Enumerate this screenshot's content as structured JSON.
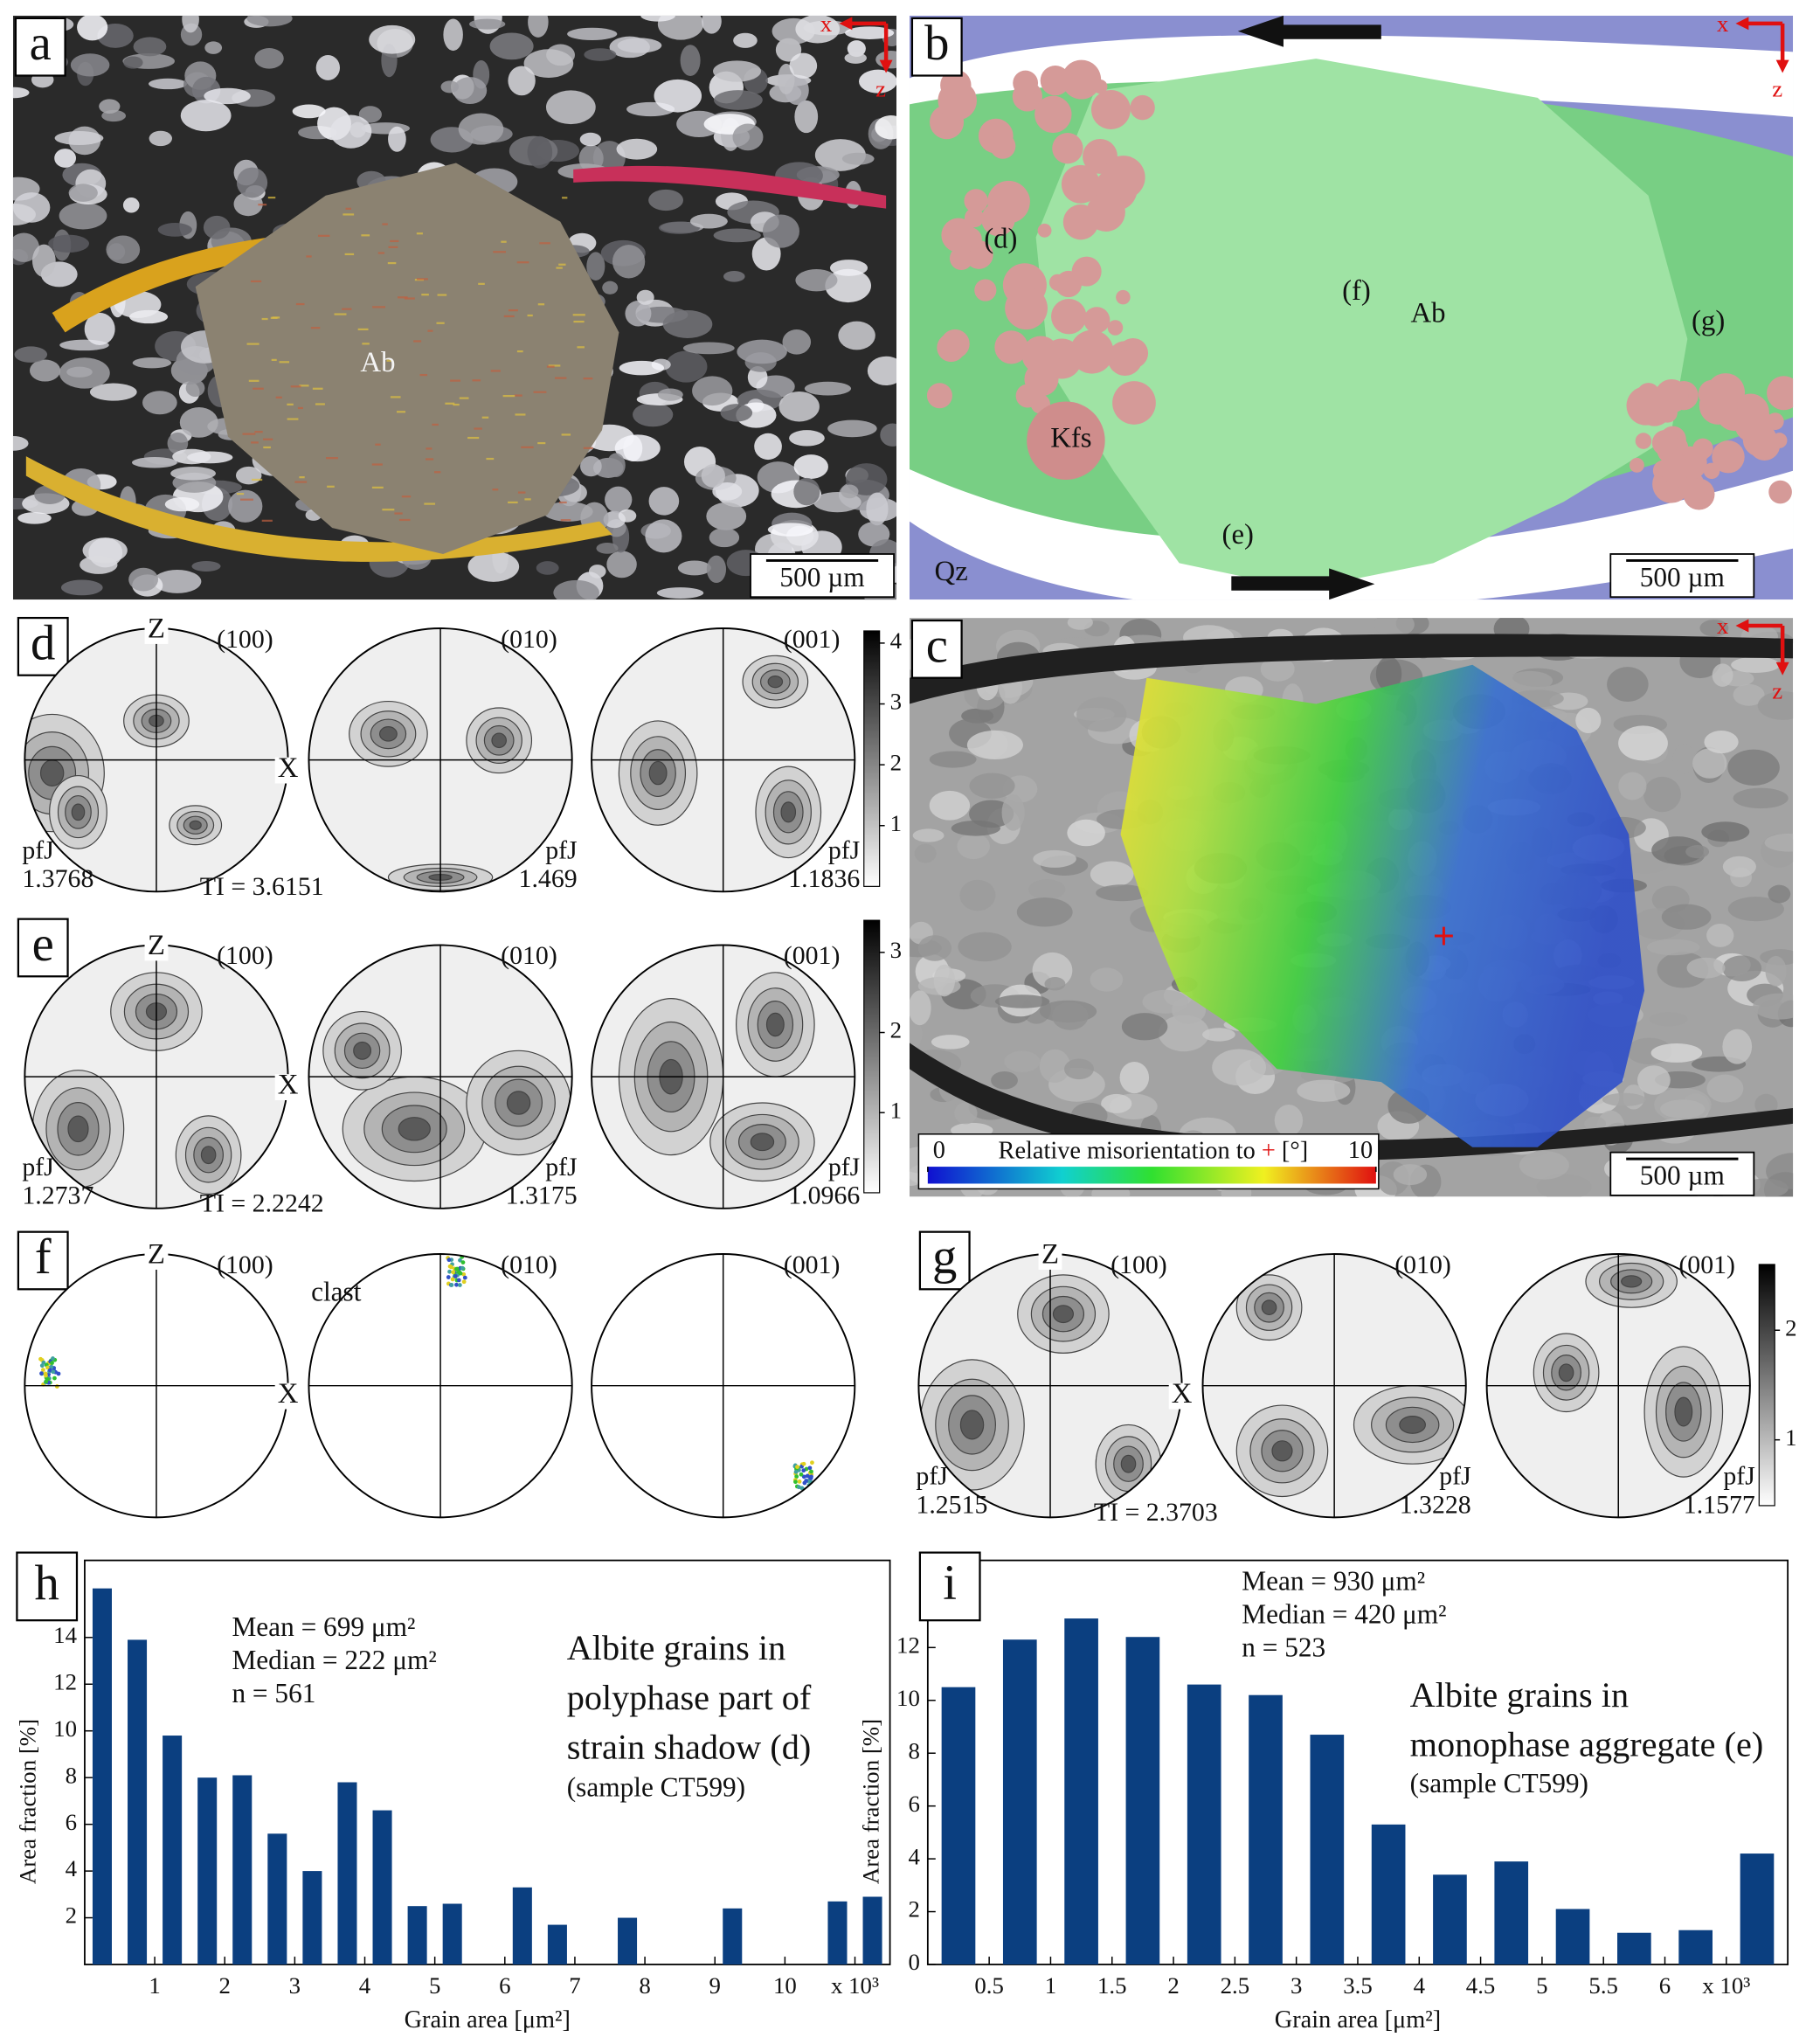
{
  "panels": {
    "a": {
      "label": "a",
      "text": "Ab",
      "scale_bar": "500 µm",
      "axes": [
        "x",
        "z"
      ]
    },
    "b": {
      "label": "b",
      "texts": [
        "(d)",
        "(f)",
        "Ab",
        "(g)",
        "Kfs",
        "(e)",
        "Qz"
      ],
      "scale_bar": "500 µm",
      "axes": [
        "x",
        "z"
      ]
    },
    "c": {
      "label": "c",
      "colorbar_title": [
        "Relative misorientation to",
        "+",
        "[°]"
      ],
      "colorbar_lim": [
        0,
        10
      ],
      "colorbar_ticks": [
        0,
        10
      ],
      "scale_bar": "500 µm",
      "axes": [
        "x",
        "z"
      ]
    },
    "d": {
      "label": "d",
      "z": "Z",
      "x": "X",
      "planes": [
        "(100)",
        "(010)",
        "(001)"
      ],
      "pfj": [
        {
          "label": "pfJ",
          "value": 1.3768
        },
        {
          "label": "pfJ",
          "value": 1.469
        },
        {
          "label": "pfJ",
          "value": 1.1836
        }
      ],
      "ti": "TI = 3.6151",
      "colorbar_lim": [
        0,
        4.2
      ],
      "colorbar_ticks": [
        1,
        2,
        3,
        4
      ]
    },
    "e": {
      "label": "e",
      "z": "Z",
      "x": "X",
      "planes": [
        "(100)",
        "(010)",
        "(001)"
      ],
      "pfj": [
        {
          "label": "pfJ",
          "value": 1.2737
        },
        {
          "label": "pfJ",
          "value": 1.3175
        },
        {
          "label": "pfJ",
          "value": 1.0966
        }
      ],
      "ti": "TI = 2.2242",
      "colorbar_lim": [
        0,
        3.4
      ],
      "colorbar_ticks": [
        1,
        2,
        3
      ]
    },
    "f": {
      "label": "f",
      "z": "Z",
      "x": "X",
      "planes": [
        "(100)",
        "(010)",
        "(001)"
      ],
      "note": "clast"
    },
    "g": {
      "label": "g",
      "z": "Z",
      "x": "X",
      "planes": [
        "(100)",
        "(010)",
        "(001)"
      ],
      "pfj": [
        {
          "label": "pfJ",
          "value": 1.2515
        },
        {
          "label": "pfJ",
          "value": 1.3228
        },
        {
          "label": "pfJ",
          "value": 1.1577
        }
      ],
      "ti": "TI = 2.3703",
      "colorbar_lim": [
        0.4,
        2.6
      ],
      "colorbar_ticks": [
        1,
        2
      ]
    }
  },
  "chart_data": [
    {
      "type": "histogram",
      "panel_label": "h",
      "xlabel": "Grain area [μm²]",
      "ylabel": "Area fraction [%]",
      "bins": [
        0,
        0.5,
        1,
        1.5,
        2,
        2.5,
        3,
        3.5,
        4,
        4.5,
        5,
        5.5,
        6,
        6.5,
        7,
        7.5,
        8,
        8.5,
        9,
        9.5,
        10,
        10.5,
        11,
        11.5
      ],
      "values": [
        16.1,
        13.9,
        9.8,
        8.0,
        8.1,
        5.6,
        4.0,
        7.8,
        6.6,
        2.5,
        2.6,
        0,
        3.3,
        1.7,
        0,
        2.0,
        0,
        0,
        2.4,
        0,
        0,
        2.7,
        2.9
      ],
      "color": "#0b3f80",
      "xlim": [
        0,
        11.5
      ],
      "xticks": [
        1,
        2,
        3,
        4,
        5,
        6,
        7,
        8,
        9,
        10,
        {
          "value": 11,
          "label": "x 10³"
        }
      ],
      "ylim": [
        0,
        17.3
      ],
      "yticks": [
        2,
        4,
        6,
        8,
        10,
        12,
        14
      ],
      "stats": [
        "Mean = 699 μm²",
        "Median = 222 μm²",
        "n = 561"
      ],
      "note": [
        "Albite grains in",
        "polyphase part of",
        "strain shadow (d)"
      ],
      "sample": "(sample CT599)"
    },
    {
      "type": "histogram",
      "panel_label": "i",
      "xlabel": "Grain area [μm²]",
      "ylabel": "Area fraction [%]",
      "bins": [
        0,
        0.5,
        1,
        1.5,
        2,
        2.5,
        3,
        3.5,
        4,
        4.5,
        5,
        5.5,
        6,
        6.5,
        7
      ],
      "values": [
        10.5,
        12.3,
        13.1,
        12.4,
        10.6,
        10.2,
        8.7,
        5.3,
        3.4,
        3.9,
        2.1,
        1.2,
        1.3,
        4.2
      ],
      "color": "#0b3f80",
      "xlim": [
        0,
        7
      ],
      "xticks": [
        0.5,
        1,
        1.5,
        2,
        2.5,
        3,
        3.5,
        4,
        4.5,
        5,
        5.5,
        6,
        {
          "value": 6.5,
          "label": "x 10³"
        }
      ],
      "ylim": [
        0,
        15.3
      ],
      "yticks": [
        0,
        2,
        4,
        6,
        8,
        10,
        12
      ],
      "stats": [
        "Mean = 930 μm²",
        "Median = 420 μm²",
        "n = 523"
      ],
      "note": [
        "Albite grains in",
        "monophase aggregate (e)"
      ],
      "sample": "(sample CT599)"
    }
  ]
}
